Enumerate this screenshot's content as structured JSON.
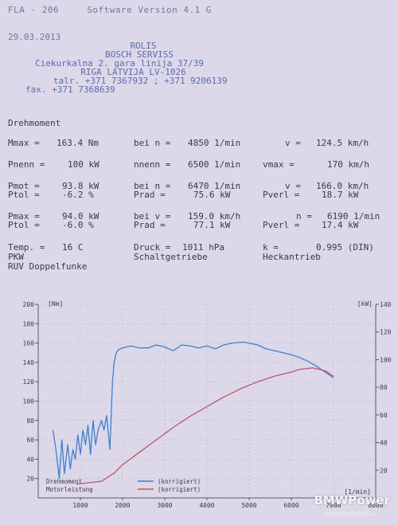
{
  "header": {
    "model": "FLA - 206",
    "software": "Software Version  4.1 G",
    "date": "29.03.2013"
  },
  "address": {
    "line1": "ROLIS",
    "line2": "BOSCH  SERVISS",
    "line3": "Ciekurkalna  2. gara linija 37/39",
    "line4": "RIGA LATVIJA LV-1026",
    "line5": "talr.  +371 7367932 ; +371 9206139",
    "line6": "fax.   +371 7368639"
  },
  "section_title": "Drehmoment",
  "rows": {
    "mmax_label": "Mmax =",
    "mmax_val": "163.4 Nm",
    "mmax_n_label": "bei n =",
    "mmax_n_val": "4850 1/min",
    "mmax_v_label": "v =",
    "mmax_v_val": "124.5 km/h",
    "pnenn_label": "Pnenn =",
    "pnenn_val": "100 kW",
    "nnenn_label": "nnenn =",
    "nnenn_val": "6500 1/min",
    "vmax_label": "vmax =",
    "vmax_val": "170 km/h",
    "pmot_label": "Pmot =",
    "pmot_val": "93.8 kW",
    "pmot_n_label": "bei n =",
    "pmot_n_val": "6470 1/min",
    "pmot_v_label": "v =",
    "pmot_v_val": "166.0 km/h",
    "ptol1_label": "Ptol =",
    "ptol1_val": "-6.2 %",
    "prad1_label": "Prad =",
    "prad1_val": "75.6 kW",
    "pverl1_label": "Pverl =",
    "pverl1_val": "18.7 kW",
    "pmax_label": "Pmax =",
    "pmax_val": "94.0 kW",
    "pmax_v_label": "bei v =",
    "pmax_v_val": "159.0 km/h",
    "pmax_n_label": "n =",
    "pmax_n_val": "6190 1/min",
    "ptol2_label": "Ptol =",
    "ptol2_val": "-6.0 %",
    "prad2_label": "Prad =",
    "prad2_val": "77.1 kW",
    "pverl2_label": "Pverl =",
    "pverl2_val": "17.4 kW",
    "temp_label": "Temp. =",
    "temp_val": "16  C",
    "druck_label": "Druck =",
    "druck_val": "1011  hPa",
    "k_label": "k     =",
    "k_val": "0.995 (DIN)",
    "pkw": "PKW",
    "getriebe": "Schaltgetriebe",
    "antrieb": "Heckantrieb",
    "ruv": "RUV  Doppelfunke"
  },
  "chart_data": {
    "type": "line",
    "left_axis_label": "[Nm]",
    "right_axis_label": "[kW]",
    "x_axis_label": "[1/min]",
    "xlim": [
      0,
      8000
    ],
    "ylim_left": [
      0,
      200
    ],
    "ylim_right": [
      0,
      140
    ],
    "x_ticks": [
      "1000",
      "2000",
      "3000",
      "4000",
      "5000",
      "6000",
      "7000",
      "8000"
    ],
    "left_ticks": [
      "20",
      "40",
      "60",
      "80",
      "100",
      "120",
      "140",
      "160",
      "180",
      "200"
    ],
    "right_ticks": [
      "20",
      "40",
      "60",
      "80",
      "100",
      "120",
      "140"
    ],
    "series": [
      {
        "name": "Drehmoment",
        "legend_note": "(korrigiert)",
        "color": "#3a80d8",
        "axis": "left",
        "x": [
          350,
          420,
          500,
          560,
          620,
          700,
          760,
          820,
          880,
          940,
          1000,
          1060,
          1120,
          1180,
          1240,
          1300,
          1360,
          1420,
          1500,
          1560,
          1620,
          1700,
          1760,
          1800,
          1850,
          1900,
          2000,
          2200,
          2400,
          2600,
          2800,
          3000,
          3200,
          3400,
          3600,
          3800,
          4000,
          4200,
          4400,
          4600,
          4850,
          5000,
          5200,
          5400,
          5600,
          5800,
          6000,
          6200,
          6400,
          6600,
          6800,
          7000
        ],
        "y": [
          70,
          50,
          20,
          60,
          25,
          55,
          30,
          50,
          40,
          65,
          45,
          70,
          55,
          75,
          45,
          80,
          55,
          70,
          80,
          70,
          85,
          50,
          120,
          140,
          150,
          153,
          155,
          157,
          155,
          155,
          158,
          156,
          152,
          158,
          157,
          155,
          157,
          154,
          158,
          160,
          161,
          160,
          158,
          154,
          152,
          150,
          148,
          145,
          141,
          136,
          130,
          124
        ]
      },
      {
        "name": "Motorleistung",
        "legend_note": "(korrigiert)",
        "color": "#b85868",
        "axis": "right",
        "x": [
          900,
          1200,
          1500,
          1800,
          2000,
          2400,
          2800,
          3200,
          3600,
          4000,
          4400,
          4800,
          5200,
          5600,
          6000,
          6200,
          6500,
          6800,
          7000
        ],
        "y": [
          10,
          11,
          12,
          18,
          24,
          33,
          42,
          51,
          59,
          66,
          73,
          79,
          84,
          88,
          91,
          93,
          94,
          92,
          88
        ]
      }
    ]
  },
  "watermark": {
    "brand": "BMWPower",
    "sub": "WWW.BMWPOWER.LV"
  }
}
